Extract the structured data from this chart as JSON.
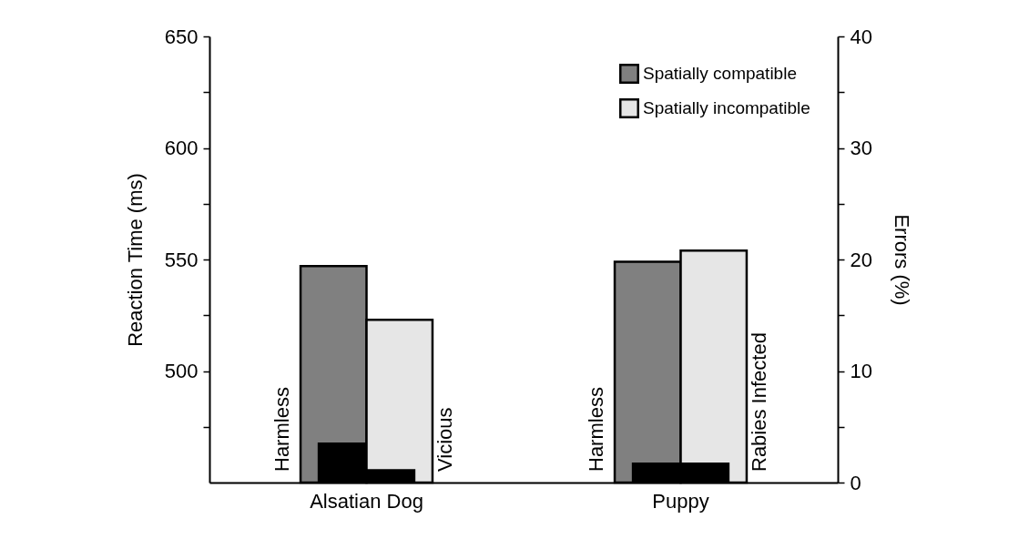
{
  "chart_data": {
    "type": "bar",
    "categories": [
      "Alsatian Dog",
      "Puppy"
    ],
    "ylabel": "Reaction Time (ms)",
    "y2label": "Errors (%)",
    "series": [
      {
        "name": "Spatially compatible",
        "color": "#808080",
        "values": [
          547,
          549
        ]
      },
      {
        "name": "Spatially incompatible",
        "color": "#e6e6e6",
        "values": [
          523,
          554
        ]
      },
      {
        "color": "#000000",
        "axis": "y2",
        "values": [
          3.6,
          1.8
        ]
      },
      {
        "color": "#000000",
        "axis": "y2",
        "values": [
          1.2,
          1.8
        ]
      }
    ],
    "ylim": [
      450,
      650
    ],
    "yticks": [
      {
        "value": 475,
        "label": null
      },
      500,
      {
        "value": 525,
        "label": null
      },
      550,
      {
        "value": 575,
        "label": null
      },
      600,
      {
        "value": 625,
        "label": null
      },
      650
    ],
    "y2lim": [
      0,
      40
    ],
    "y2ticks": [
      0,
      {
        "value": 5,
        "label": null
      },
      10,
      {
        "value": 15,
        "label": null
      },
      20,
      {
        "value": 25,
        "label": null
      },
      30,
      {
        "value": 35,
        "label": null
      },
      40
    ],
    "annotations": [
      "Harmless",
      "Vicious",
      "Harmless",
      "Rabies Infected"
    ],
    "legend": "top right",
    "grid": false
  }
}
